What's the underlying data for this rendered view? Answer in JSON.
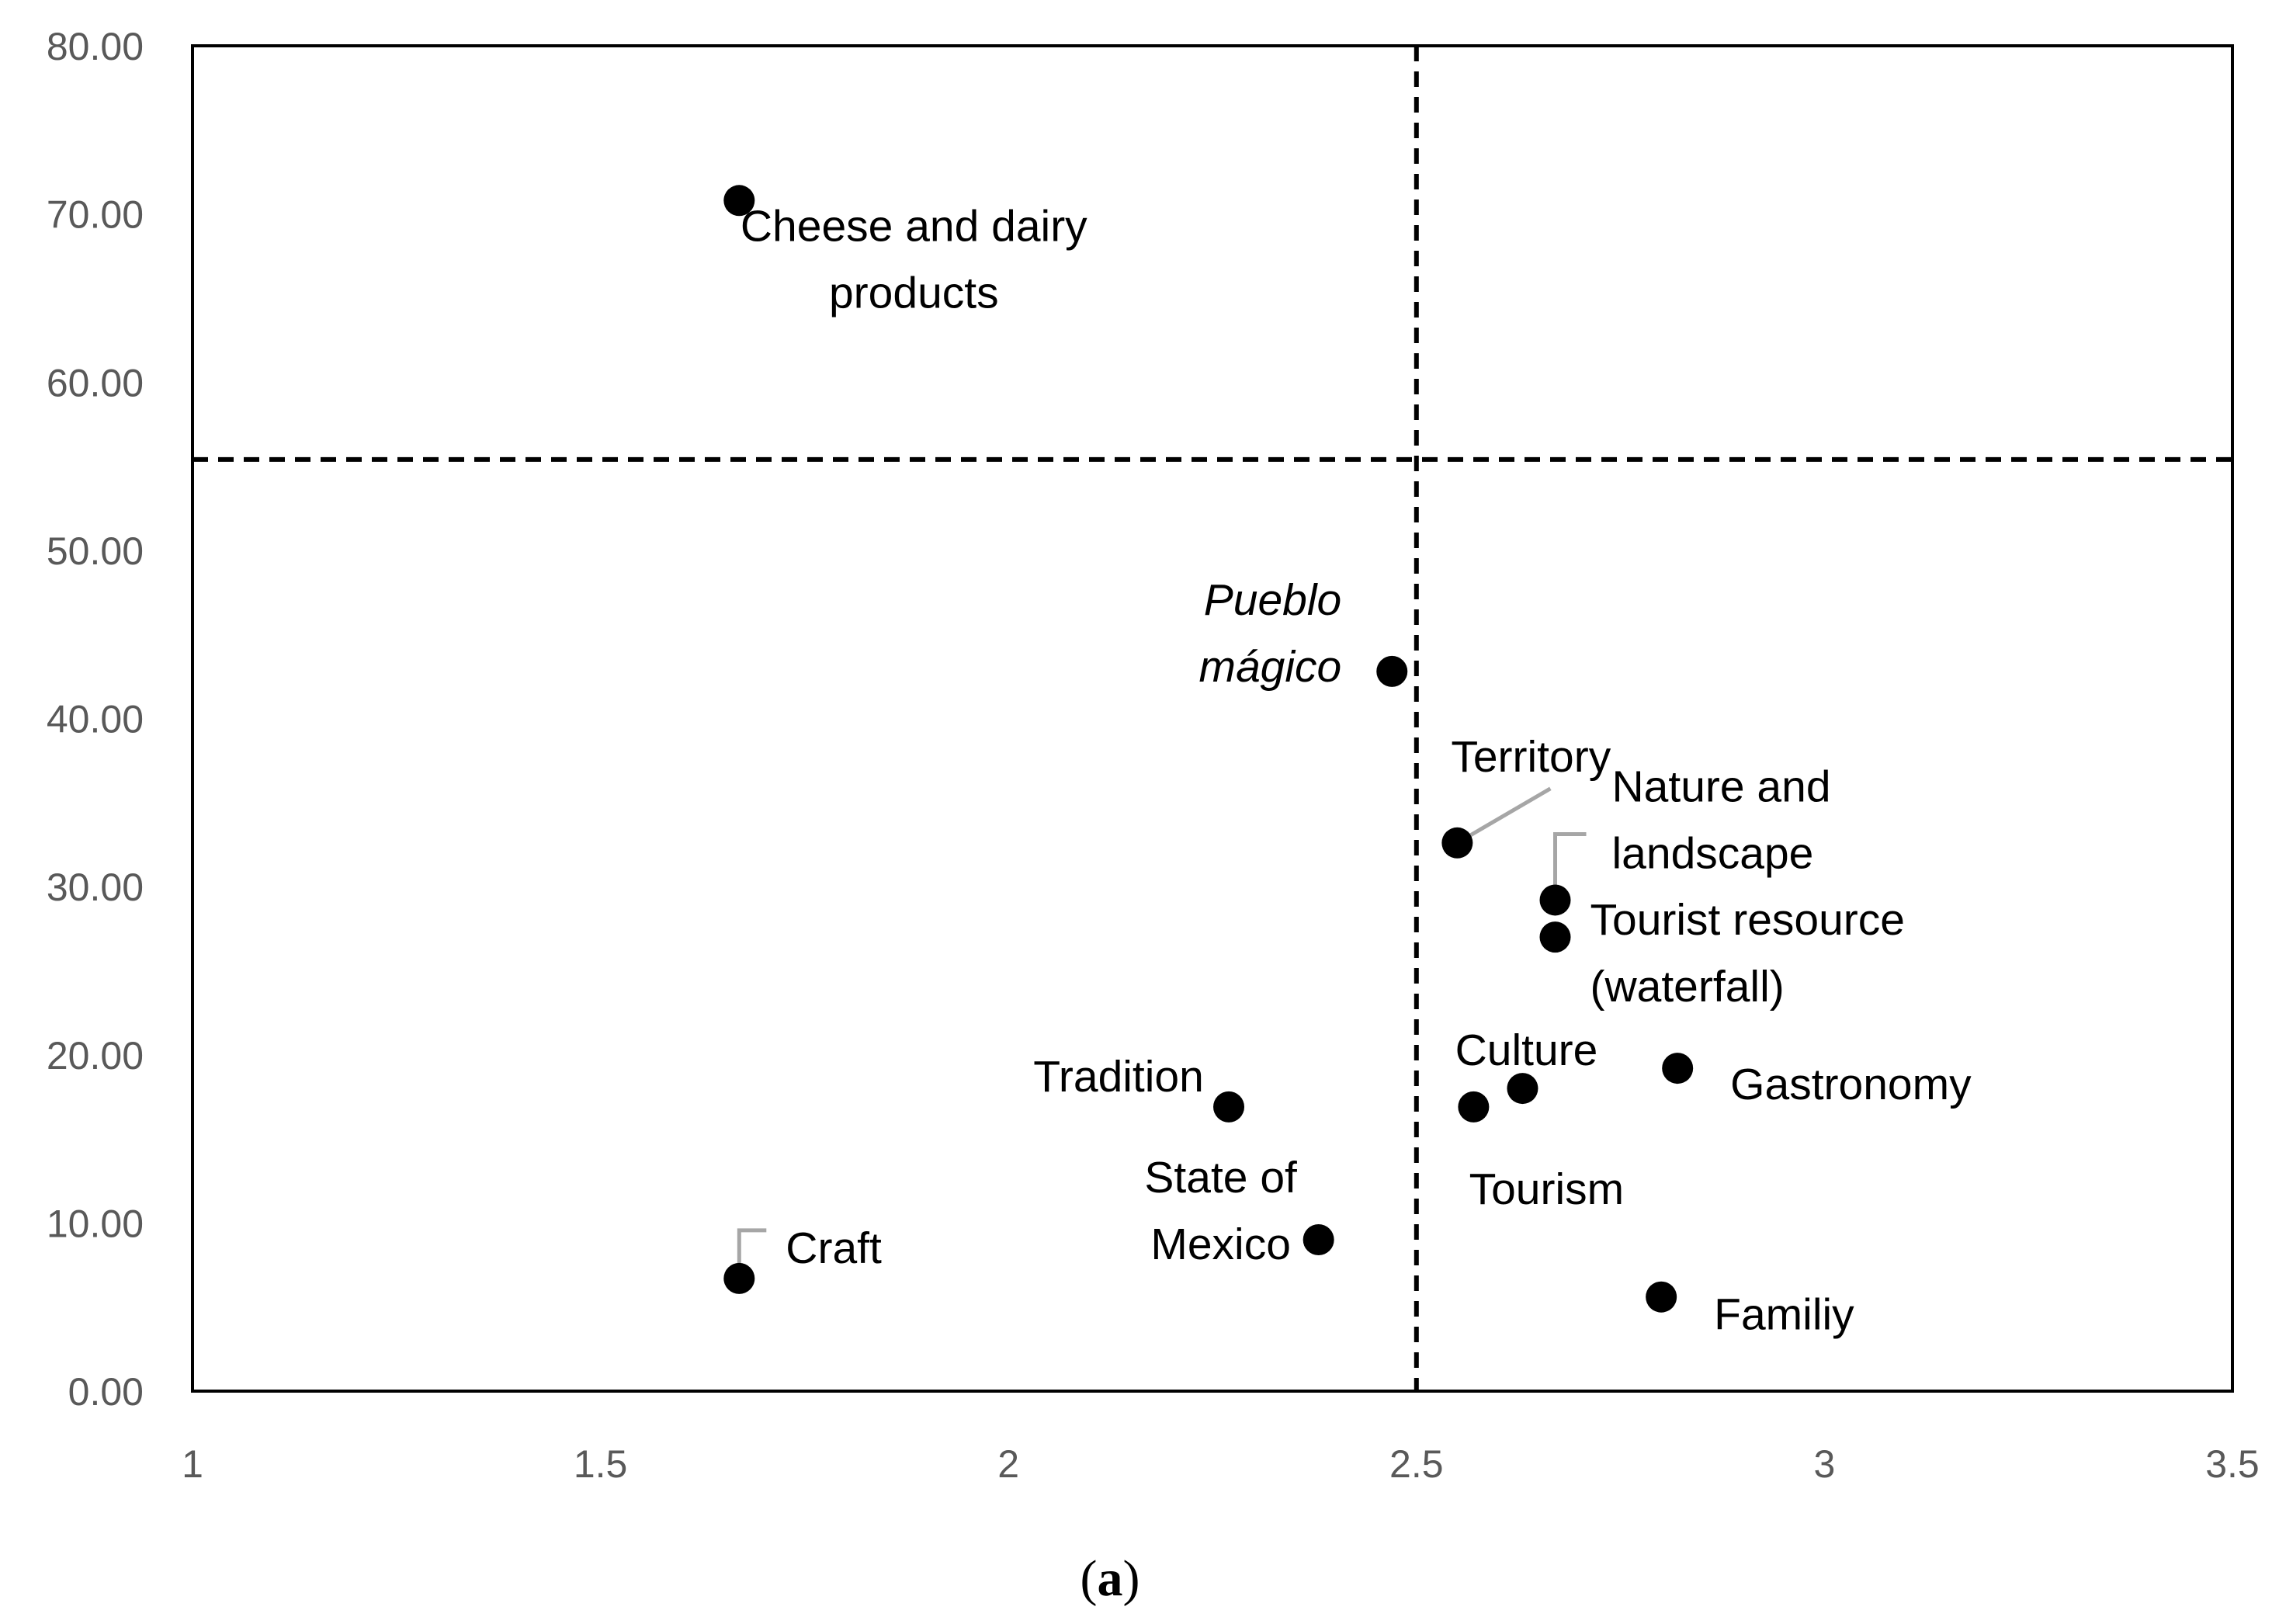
{
  "chart_data": {
    "type": "scatter",
    "title": "",
    "xlabel": "",
    "ylabel": "",
    "xlim": [
      1,
      3.5
    ],
    "ylim": [
      0,
      80
    ],
    "x_ticks": [
      "1",
      "1.5",
      "2",
      "2.5",
      "3",
      "3.5"
    ],
    "y_ticks": [
      "0.00",
      "10.00",
      "20.00",
      "30.00",
      "40.00",
      "50.00",
      "60.00",
      "70.00",
      "80.00"
    ],
    "reference_lines": {
      "x": 2.5,
      "y": 55.4
    },
    "points": [
      {
        "name": "Cheese and dairy products",
        "label_lines": [
          "Cheese and dairy",
          "products"
        ],
        "x": 1.67,
        "y": 70.8
      },
      {
        "name": "Pueblo mágico",
        "label_lines": [
          "Pueblo",
          "mágico"
        ],
        "x": 2.47,
        "y": 42.8,
        "italic": true
      },
      {
        "name": "Territory",
        "label_lines": [
          "Territory"
        ],
        "x": 2.55,
        "y": 32.6
      },
      {
        "name": "Nature and landscape",
        "label_lines": [
          "Nature and",
          "landscape"
        ],
        "x": 2.67,
        "y": 29.2
      },
      {
        "name": "Tourist resource (waterfall)",
        "label_lines": [
          "Tourist resource",
          "(waterfall)"
        ],
        "x": 2.67,
        "y": 27.0
      },
      {
        "name": "Gastronomy",
        "label_lines": [
          "Gastronomy"
        ],
        "x": 2.82,
        "y": 19.2
      },
      {
        "name": "Culture",
        "label_lines": [
          "Culture"
        ],
        "x": 2.63,
        "y": 18.0
      },
      {
        "name": "Tourism",
        "label_lines": [
          "Tourism"
        ],
        "x": 2.57,
        "y": 16.9
      },
      {
        "name": "Tradition",
        "label_lines": [
          "Tradition"
        ],
        "x": 2.27,
        "y": 16.9
      },
      {
        "name": "State of Mexico",
        "label_lines": [
          "State of",
          "Mexico"
        ],
        "x": 2.38,
        "y": 9.0
      },
      {
        "name": "Craft",
        "label_lines": [
          "Craft"
        ],
        "x": 1.67,
        "y": 6.7
      },
      {
        "name": "Familiy",
        "label_lines": [
          "Familiy"
        ],
        "x": 2.8,
        "y": 5.6
      }
    ]
  },
  "caption": {
    "open": "(",
    "letter": "a",
    "close": ")"
  }
}
